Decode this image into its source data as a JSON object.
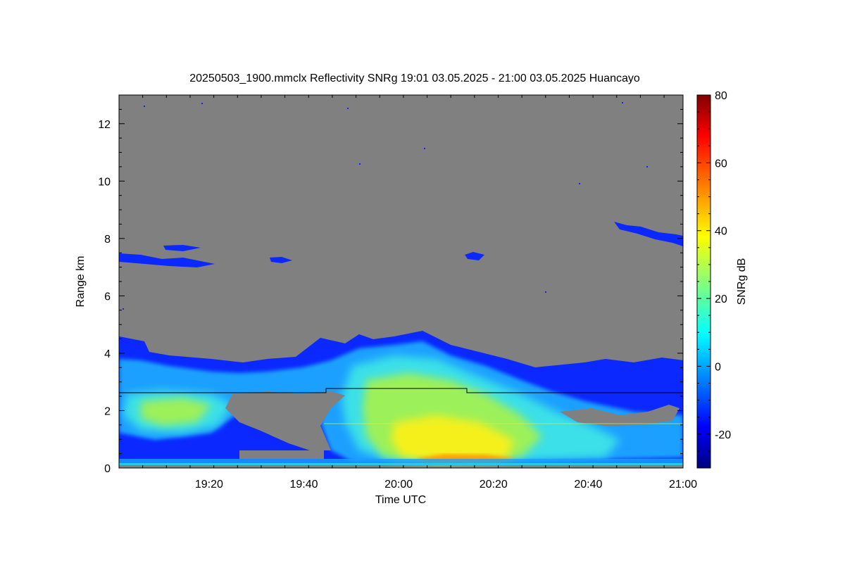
{
  "chart_data": {
    "type": "heatmap",
    "title": "20250503_1900.mmclx Reflectivity SNRg   19:01 03.05.2025 - 21:00 03.05.2025 Huancayo",
    "xlabel": "Time UTC",
    "ylabel": "Range km",
    "colorbar_label": "SNRg dB",
    "xlim": [
      "19:01",
      "21:00"
    ],
    "ylim": [
      0,
      13
    ],
    "x_ticks": [
      "19:20",
      "19:40",
      "20:00",
      "20:20",
      "20:40",
      "21:00"
    ],
    "y_ticks": [
      "0",
      "2",
      "4",
      "6",
      "8",
      "10",
      "12"
    ],
    "colorbar_range": [
      -30,
      80
    ],
    "colorbar_ticks": [
      "-20",
      "0",
      "20",
      "40",
      "60",
      "80"
    ],
    "colormap": "jet",
    "background_color": "#808080",
    "grid": false,
    "features": [
      {
        "kind": "cloud-layer",
        "time_start": "19:01",
        "time_end": "21:00",
        "range_bottom_km": 0.1,
        "range_top_km": 4.6,
        "max_snr_db": 55
      },
      {
        "kind": "cloud-layer",
        "time_start": "19:01",
        "time_end": "19:22",
        "range_bottom_km": 7.0,
        "range_top_km": 7.8,
        "max_snr_db": -18
      },
      {
        "kind": "cloud-layer",
        "time_start": "20:47",
        "time_end": "21:00",
        "range_bottom_km": 7.8,
        "range_top_km": 8.6,
        "max_snr_db": -18
      },
      {
        "kind": "line",
        "time_start": "19:01",
        "time_end": "21:00",
        "range_km": 2.65
      }
    ]
  }
}
